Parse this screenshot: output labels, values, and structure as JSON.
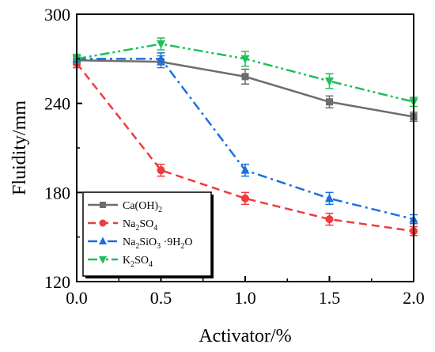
{
  "chart_data": {
    "type": "line",
    "xlabel": "Activator/%",
    "ylabel": "Fluidity/mm",
    "xlim": [
      0.0,
      2.0
    ],
    "ylim": [
      120,
      300
    ],
    "xticks": [
      "0.0",
      "0.5",
      "1.0",
      "1.5",
      "2.0"
    ],
    "yticks": [
      "120",
      "180",
      "240",
      "300"
    ],
    "legend_position": "bottom-left",
    "x": [
      0.0,
      0.5,
      1.0,
      1.5,
      2.0
    ],
    "series": [
      {
        "name": "Ca(OH)2",
        "name_main": "Ca(OH)",
        "name_sub": "2",
        "name_rest": "",
        "values": [
          269,
          268,
          258,
          241,
          231
        ],
        "errors": [
          3,
          4,
          5,
          4,
          3
        ],
        "color": "#6d6d6d",
        "dash": "solid",
        "marker": "square"
      },
      {
        "name": "Na2SO4",
        "name_main": "Na",
        "name_sub": "2",
        "name_rest": "SO",
        "name_sub2": "4",
        "values": [
          267,
          195,
          176,
          162,
          154
        ],
        "errors": [
          3,
          4,
          4,
          4,
          3
        ],
        "color": "#ef3b3b",
        "dash": "dashed",
        "marker": "circle"
      },
      {
        "name": "Na2SiO3 ·9H2O",
        "name_main": "Na",
        "name_sub": "2",
        "name_rest": "SiO",
        "name_sub2": "3",
        "name_rest2": " ·9H",
        "name_sub3": "2",
        "name_rest3": "O",
        "values": [
          270,
          270,
          195,
          176,
          162
        ],
        "errors": [
          3,
          4,
          4,
          4,
          3
        ],
        "color": "#1a6fe0",
        "dash": "dashdot",
        "marker": "triangle-up"
      },
      {
        "name": "K2SO4",
        "name_main": "K",
        "name_sub": "2",
        "name_rest": "SO",
        "name_sub2": "4",
        "values": [
          270,
          280,
          270,
          255,
          241
        ],
        "errors": [
          3,
          4,
          5,
          5,
          3
        ],
        "color": "#1fbf5a",
        "dash": "dashdotdot",
        "marker": "triangle-down"
      }
    ]
  }
}
